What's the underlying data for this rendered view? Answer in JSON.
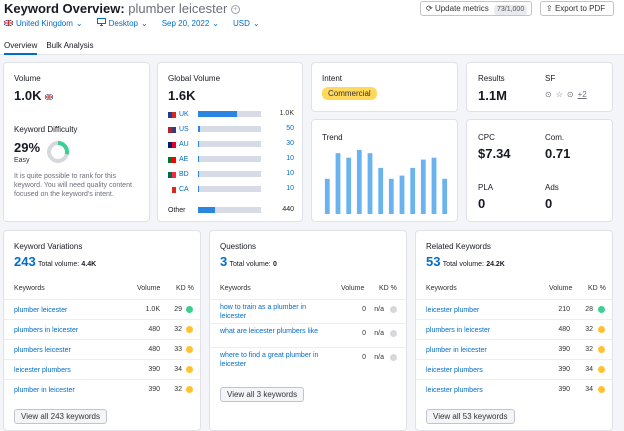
{
  "header": {
    "title": "Keyword Overview:",
    "keyword": "plumber leicester",
    "update_label": "Update metrics",
    "update_count": "73/1,000",
    "export_label": "Export to PDF"
  },
  "filters": {
    "database": "United Kingdom",
    "device": "Desktop",
    "date": "Sep 20, 2022",
    "currency": "USD"
  },
  "tabs": [
    {
      "label": "Overview"
    },
    {
      "label": "Bulk Analysis"
    }
  ],
  "volume": {
    "label": "Volume",
    "value": "1.0K"
  },
  "difficulty": {
    "label": "Keyword Difficulty",
    "value": "29%",
    "level": "Easy",
    "percent": 29,
    "description": "It is quite possible to rank for this keyword. You will need quality content focused on the keyword's intent."
  },
  "global_volume": {
    "label": "Global Volume",
    "value": "1.6K",
    "countries": [
      {
        "code": "UK",
        "value": "1.0K",
        "fraction": 0.62
      },
      {
        "code": "US",
        "value": "50",
        "fraction": 0.03
      },
      {
        "code": "AU",
        "value": "30",
        "fraction": 0.02
      },
      {
        "code": "AE",
        "value": "10",
        "fraction": 0.01
      },
      {
        "code": "BD",
        "value": "10",
        "fraction": 0.01
      },
      {
        "code": "CA",
        "value": "10",
        "fraction": 0.01
      }
    ],
    "other_label": "Other",
    "other_value": "440",
    "other_fraction": 0.27
  },
  "intent": {
    "label": "Intent",
    "value": "Commercial"
  },
  "trend": {
    "label": "Trend",
    "chart_data": {
      "type": "bar",
      "values": [
        0.55,
        0.95,
        0.88,
        1.0,
        0.95,
        0.72,
        0.55,
        0.6,
        0.72,
        0.85,
        0.88,
        0.55
      ]
    }
  },
  "results": {
    "label": "Results",
    "value": "1.1M"
  },
  "sf": {
    "label": "SF",
    "more": "+2"
  },
  "cpc": {
    "label": "CPC",
    "value": "$7.34"
  },
  "com": {
    "label": "Com.",
    "value": "0.71"
  },
  "pla": {
    "label": "PLA",
    "value": "0"
  },
  "ads": {
    "label": "Ads",
    "value": "0"
  },
  "variations": {
    "title": "Keyword Variations",
    "count": "243",
    "total_label": "Total volume:",
    "total": "4.4K",
    "col_keywords": "Keywords",
    "col_volume": "Volume",
    "col_kd": "KD %",
    "rows": [
      {
        "keyword": "plumber leicester",
        "volume": "1.0K",
        "kd": "29",
        "color": "#3ccf91"
      },
      {
        "keyword": "plumbers in leicester",
        "volume": "480",
        "kd": "32",
        "color": "#ffc233"
      },
      {
        "keyword": "plumbers leicester",
        "volume": "480",
        "kd": "33",
        "color": "#ffc233"
      },
      {
        "keyword": "leicester plumbers",
        "volume": "390",
        "kd": "34",
        "color": "#ffc233"
      },
      {
        "keyword": "plumber in leicester",
        "volume": "390",
        "kd": "32",
        "color": "#ffc233"
      }
    ],
    "view_all": "View all 243 keywords"
  },
  "questions": {
    "title": "Questions",
    "count": "3",
    "total_label": "Total volume:",
    "total": "0",
    "col_keywords": "Keywords",
    "col_volume": "Volume",
    "col_kd": "KD %",
    "rows": [
      {
        "keyword": "how to train as a plumber in leicester",
        "volume": "0",
        "kd": "n/a",
        "color": "#d6d8de"
      },
      {
        "keyword": "what are leicester plumbers like",
        "volume": "0",
        "kd": "n/a",
        "color": "#d6d8de"
      },
      {
        "keyword": "where to find a great plumber in leicester",
        "volume": "0",
        "kd": "n/a",
        "color": "#d6d8de"
      }
    ],
    "view_all": "View all 3 keywords"
  },
  "related": {
    "title": "Related Keywords",
    "count": "53",
    "total_label": "Total volume:",
    "total": "24.2K",
    "col_keywords": "Keywords",
    "col_volume": "Volume",
    "col_kd": "KD %",
    "rows": [
      {
        "keyword": "leicester plumber",
        "volume": "210",
        "kd": "28",
        "color": "#3ccf91"
      },
      {
        "keyword": "plumbers in leicester",
        "volume": "480",
        "kd": "32",
        "color": "#ffc233"
      },
      {
        "keyword": "plumber in leicester",
        "volume": "390",
        "kd": "32",
        "color": "#ffc233"
      },
      {
        "keyword": "leicester plumbers",
        "volume": "390",
        "kd": "34",
        "color": "#ffc233"
      },
      {
        "keyword": "leicester plumbers",
        "volume": "390",
        "kd": "34",
        "color": "#ffc233"
      }
    ],
    "view_all": "View all 53 keywords"
  }
}
